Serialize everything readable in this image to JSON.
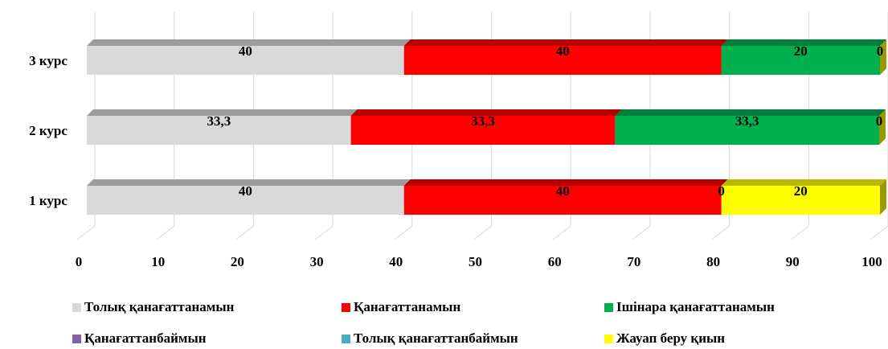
{
  "chart_data": {
    "type": "stacked_bar_3d",
    "orientation": "horizontal",
    "categories": [
      "1 курс",
      "2 курс",
      "3 курс"
    ],
    "series": [
      {
        "name": "Толық қанағаттанамын",
        "color": "#d9d9d9",
        "values": [
          40,
          33.3,
          40
        ],
        "value_labels": [
          "40",
          "33,3",
          "40"
        ]
      },
      {
        "name": "Қанағаттанамын",
        "color": "#ff0000",
        "values": [
          40,
          33.3,
          40
        ],
        "value_labels": [
          "40",
          "33,3",
          "40"
        ]
      },
      {
        "name": "Ішінара қанағаттанамын",
        "color": "#00b050",
        "values": [
          0,
          33.3,
          20
        ],
        "value_labels": [
          "0",
          "33,3",
          "20"
        ]
      },
      {
        "name": "Қанағаттанбаймын",
        "color": "#8064a2",
        "values": [
          null,
          null,
          null
        ]
      },
      {
        "name": "Толық қанағаттанбаймын",
        "color": "#4bacc6",
        "values": [
          null,
          null,
          null
        ]
      },
      {
        "name": "Жауап беру қиын",
        "color": "#ffff00",
        "values": [
          20,
          0,
          0
        ]
      }
    ],
    "xlim": [
      0,
      100
    ],
    "xticks": [
      0,
      10,
      20,
      30,
      40,
      50,
      60,
      70,
      80,
      90,
      100
    ],
    "grid": true,
    "legend": "bottom"
  }
}
